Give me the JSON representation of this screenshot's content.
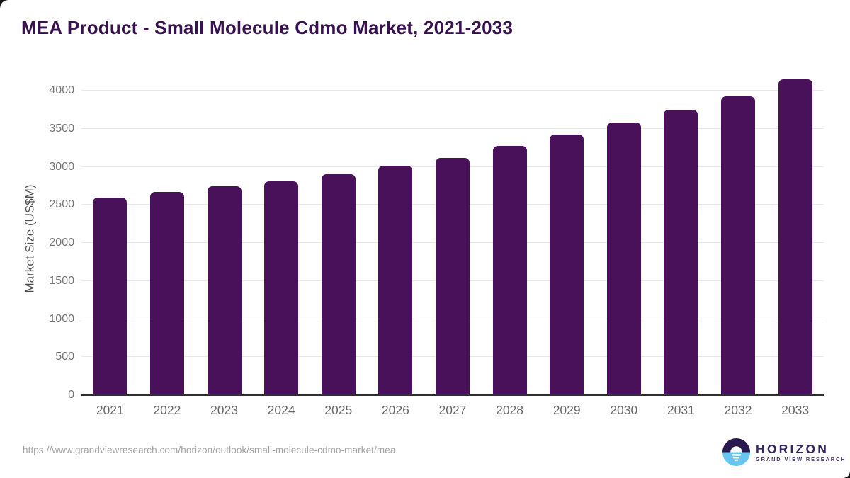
{
  "chart_data": {
    "type": "bar",
    "title": "MEA Product - Small Molecule Cdmo Market, 2021-2033",
    "categories": [
      "2021",
      "2022",
      "2023",
      "2024",
      "2025",
      "2026",
      "2027",
      "2028",
      "2029",
      "2030",
      "2031",
      "2032",
      "2033"
    ],
    "values": [
      2600,
      2670,
      2740,
      2810,
      2900,
      3010,
      3120,
      3270,
      3420,
      3580,
      3750,
      3930,
      4150
    ],
    "xlabel": "",
    "ylabel": "Market Size (US$M)",
    "ylim": [
      0,
      4000
    ],
    "yticks": [
      0,
      500,
      1000,
      1500,
      2000,
      2500,
      3000,
      3500,
      4000
    ],
    "grid": "horizontal",
    "legend": "none",
    "bar_color": "#49115a"
  },
  "colors": {
    "title_text": "#38124f",
    "bar_fill": "#49115a",
    "gridline": "#e8e8e8",
    "axis_line": "#2f2f2f",
    "tick_text": "#757575",
    "axis_title_text": "#4f4f4f",
    "footer_url_text": "#a3a3a3",
    "logo_dark_purple": "#2a194e",
    "logo_light_blue": "#68c5f0",
    "logo_text_purple": "#37265f"
  },
  "footer": {
    "source_url": "https://www.grandviewresearch.com/horizon/outlook/small-molecule-cdmo-market/mea",
    "logo": {
      "name": "HORIZON",
      "subtitle": "GRAND VIEW RESEARCH",
      "icon": "horizon-sunset-icon"
    }
  }
}
